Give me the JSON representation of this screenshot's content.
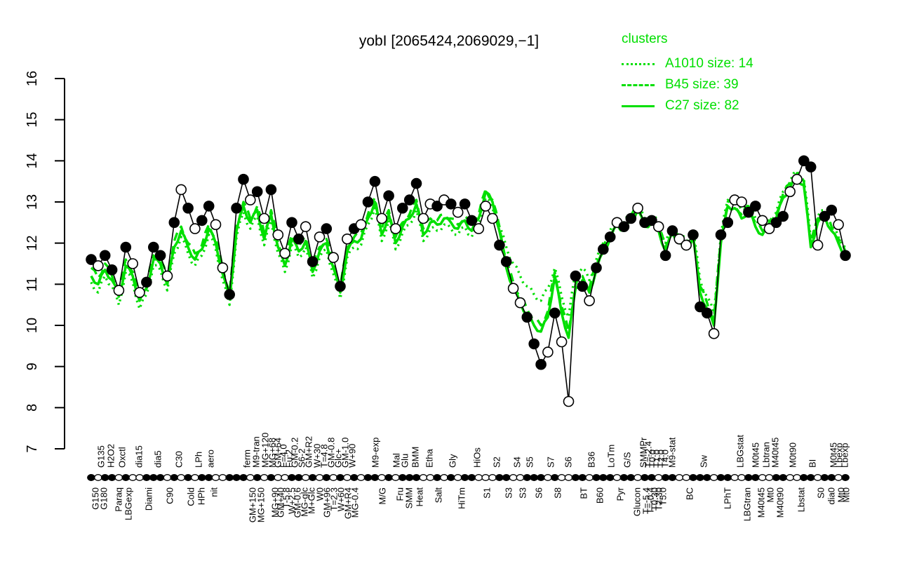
{
  "chart": {
    "title": "yobI [2065424,2069029,−1]",
    "colors": {
      "cluster": "#00DF00",
      "profile": "#000000",
      "background": "#FFFFFF"
    },
    "legend": {
      "title": "clusters",
      "entries": [
        {
          "style": "dotted",
          "label": "A1010 size: 14",
          "cluster": "A1010",
          "size": 14
        },
        {
          "style": "dashed",
          "label": "B45 size: 39",
          "cluster": "B45",
          "size": 39
        },
        {
          "style": "solid",
          "label": "C27 size: 82",
          "cluster": "C27",
          "size": 82
        }
      ]
    }
  },
  "chart_data": {
    "type": "line",
    "title": "yobI [2065424,2069029,−1]",
    "xlabel": "",
    "ylabel": "",
    "ylim": [
      7,
      16
    ],
    "yticks": [
      7,
      8,
      9,
      10,
      11,
      12,
      13,
      14,
      15,
      16
    ],
    "grid": false,
    "legend_position": "top-right",
    "series": [
      {
        "name": "yobI profile",
        "color": "#000000",
        "style": "line-with-markers",
        "points": [
          [
            11.6,
            1
          ],
          [
            11.45,
            0
          ],
          [
            11.7,
            1
          ],
          [
            11.35,
            1
          ],
          [
            10.85,
            0
          ],
          [
            11.9,
            1
          ],
          [
            11.5,
            0
          ],
          [
            10.8,
            0
          ],
          [
            11.05,
            1
          ],
          [
            11.9,
            1
          ],
          [
            11.7,
            1
          ],
          [
            11.2,
            0
          ],
          [
            12.5,
            1
          ],
          [
            13.3,
            0
          ],
          [
            12.85,
            1
          ],
          [
            12.35,
            0
          ],
          [
            12.55,
            1
          ],
          [
            12.9,
            1
          ],
          [
            12.45,
            0
          ],
          [
            11.4,
            0
          ],
          [
            10.75,
            1
          ],
          [
            12.85,
            1
          ],
          [
            13.55,
            1
          ],
          [
            13.05,
            0
          ],
          [
            13.25,
            1
          ],
          [
            12.6,
            0
          ],
          [
            13.3,
            1
          ],
          [
            12.2,
            0
          ],
          [
            11.75,
            0
          ],
          [
            12.5,
            1
          ],
          [
            12.1,
            1
          ],
          [
            12.4,
            0
          ],
          [
            11.55,
            1
          ],
          [
            12.15,
            0
          ],
          [
            12.35,
            1
          ],
          [
            11.65,
            0
          ],
          [
            10.95,
            1
          ],
          [
            12.1,
            0
          ],
          [
            12.35,
            1
          ],
          [
            12.45,
            0
          ],
          [
            13.0,
            1
          ],
          [
            13.5,
            1
          ],
          [
            12.6,
            0
          ],
          [
            13.15,
            1
          ],
          [
            12.35,
            0
          ],
          [
            12.85,
            1
          ],
          [
            13.05,
            1
          ],
          [
            13.45,
            1
          ],
          [
            12.6,
            0
          ],
          [
            12.95,
            0
          ],
          [
            12.9,
            1
          ],
          [
            13.05,
            0
          ],
          [
            12.95,
            1
          ],
          [
            12.75,
            0
          ],
          [
            12.95,
            1
          ],
          [
            12.55,
            1
          ],
          [
            12.35,
            0
          ],
          [
            12.9,
            0
          ],
          [
            12.6,
            0
          ],
          [
            11.95,
            1
          ],
          [
            11.55,
            1
          ],
          [
            10.9,
            0
          ],
          [
            10.55,
            0
          ],
          [
            10.2,
            1
          ],
          [
            9.55,
            1
          ],
          [
            9.05,
            1
          ],
          [
            9.35,
            0
          ],
          [
            10.3,
            1
          ],
          [
            9.6,
            0
          ],
          [
            8.15,
            0
          ],
          [
            11.2,
            1
          ],
          [
            10.95,
            1
          ],
          [
            10.6,
            0
          ],
          [
            11.4,
            1
          ],
          [
            11.85,
            1
          ],
          [
            12.15,
            1
          ],
          [
            12.5,
            0
          ],
          [
            12.4,
            1
          ],
          [
            12.6,
            1
          ],
          [
            12.85,
            0
          ],
          [
            12.5,
            1
          ],
          [
            12.55,
            1
          ],
          [
            12.4,
            0
          ],
          [
            11.7,
            1
          ],
          [
            12.3,
            1
          ],
          [
            12.1,
            0
          ],
          [
            11.95,
            0
          ],
          [
            12.2,
            1
          ],
          [
            10.45,
            1
          ],
          [
            10.3,
            1
          ],
          [
            9.8,
            0
          ],
          [
            12.2,
            1
          ],
          [
            12.5,
            1
          ],
          [
            13.05,
            0
          ],
          [
            13.0,
            0
          ],
          [
            12.75,
            1
          ],
          [
            12.9,
            1
          ],
          [
            12.55,
            0
          ],
          [
            12.35,
            0
          ],
          [
            12.5,
            1
          ],
          [
            12.65,
            1
          ],
          [
            13.25,
            0
          ],
          [
            13.55,
            0
          ],
          [
            14.0,
            1
          ],
          [
            13.85,
            1
          ],
          [
            11.95,
            0
          ],
          [
            12.65,
            1
          ],
          [
            12.8,
            1
          ],
          [
            12.45,
            0
          ],
          [
            11.7,
            1
          ]
        ]
      },
      {
        "name": "A1010 size: 14",
        "color": "#00DF00",
        "style": "dotted",
        "values": [
          11.05,
          10.8,
          11.2,
          10.95,
          10.5,
          11.3,
          11.05,
          10.4,
          10.75,
          11.45,
          11.35,
          10.85,
          11.75,
          12.15,
          11.75,
          11.45,
          11.7,
          12.2,
          11.85,
          11.1,
          10.5,
          12.15,
          12.75,
          12.35,
          12.65,
          11.95,
          12.55,
          11.75,
          11.3,
          11.95,
          11.65,
          11.9,
          11.15,
          11.65,
          11.85,
          11.25,
          10.65,
          11.65,
          11.9,
          11.95,
          12.45,
          12.85,
          12.05,
          12.55,
          11.85,
          12.25,
          12.45,
          12.8,
          12.05,
          12.35,
          12.3,
          12.45,
          12.35,
          12.2,
          12.4,
          12.15,
          12.45,
          13.1,
          12.85,
          12.4,
          11.9,
          11.5,
          11.2,
          10.95,
          10.75,
          10.6,
          10.9,
          11.4,
          10.7,
          10.2,
          11.3,
          11.4,
          11.1,
          11.6,
          12.0,
          12.3,
          12.6,
          12.5,
          12.7,
          12.95,
          12.55,
          12.65,
          12.5,
          12.0,
          12.4,
          12.2,
          12.05,
          12.3,
          11.1,
          10.7,
          10.3,
          12.2,
          13.05,
          13.0,
          12.8,
          12.95,
          12.6,
          12.4,
          12.55,
          12.75,
          13.25,
          13.5,
          13.75,
          13.55,
          12.1,
          12.65,
          12.8,
          12.45,
          12.15,
          11.9
        ]
      },
      {
        "name": "B45 size: 39",
        "color": "#00DF00",
        "style": "dashed",
        "values": [
          11.4,
          11.15,
          11.5,
          11.2,
          10.85,
          11.6,
          11.3,
          10.75,
          11.0,
          11.7,
          11.6,
          11.15,
          12.05,
          12.4,
          12.0,
          11.75,
          11.95,
          12.45,
          12.1,
          11.4,
          10.8,
          12.4,
          13.0,
          12.6,
          12.9,
          12.25,
          12.8,
          12.0,
          11.6,
          12.2,
          11.9,
          12.15,
          11.45,
          11.9,
          12.1,
          11.55,
          10.95,
          11.9,
          12.15,
          12.25,
          12.7,
          13.1,
          12.35,
          12.8,
          12.15,
          12.5,
          12.7,
          13.05,
          12.35,
          12.6,
          12.55,
          12.7,
          12.6,
          12.45,
          12.65,
          12.4,
          12.7,
          13.3,
          13.05,
          12.4,
          11.55,
          11.05,
          10.7,
          10.4,
          10.15,
          10.0,
          10.35,
          11.3,
          10.45,
          9.85,
          11.0,
          11.2,
          10.9,
          11.5,
          11.9,
          12.2,
          12.55,
          12.4,
          12.65,
          12.9,
          12.5,
          12.6,
          12.4,
          11.9,
          12.35,
          12.1,
          11.95,
          12.25,
          10.95,
          10.55,
          10.15,
          12.1,
          13.0,
          12.95,
          12.7,
          12.9,
          12.5,
          12.3,
          12.5,
          12.7,
          13.2,
          13.45,
          13.7,
          13.5,
          12.0,
          12.6,
          12.75,
          12.4,
          12.1,
          11.8
        ]
      },
      {
        "name": "C27 size: 82",
        "color": "#00DF00",
        "style": "solid",
        "values": [
          11.2,
          11.0,
          11.35,
          11.1,
          10.7,
          11.45,
          11.2,
          10.6,
          10.9,
          11.6,
          11.5,
          11.0,
          11.9,
          12.3,
          11.9,
          11.6,
          11.85,
          12.35,
          12.0,
          11.25,
          10.65,
          12.3,
          12.9,
          12.5,
          12.8,
          12.1,
          12.7,
          11.9,
          11.45,
          12.1,
          11.8,
          12.05,
          11.3,
          11.8,
          12.0,
          11.4,
          10.8,
          11.8,
          12.05,
          12.1,
          12.6,
          13.0,
          12.2,
          12.7,
          12.0,
          12.4,
          12.6,
          12.95,
          12.2,
          12.5,
          12.45,
          12.6,
          12.5,
          12.35,
          12.55,
          12.3,
          12.6,
          13.25,
          13.0,
          12.3,
          11.4,
          10.9,
          10.55,
          10.25,
          10.0,
          9.85,
          10.2,
          11.2,
          10.3,
          9.7,
          10.9,
          11.1,
          10.8,
          11.35,
          11.8,
          12.1,
          12.45,
          12.3,
          12.55,
          12.8,
          12.4,
          12.5,
          12.3,
          11.8,
          12.25,
          12.0,
          11.85,
          12.15,
          10.8,
          10.4,
          10.0,
          12.0,
          12.9,
          12.85,
          12.6,
          12.8,
          12.4,
          12.2,
          12.4,
          12.6,
          13.1,
          13.35,
          13.6,
          13.4,
          11.9,
          12.5,
          12.65,
          12.3,
          12.0,
          11.7
        ]
      }
    ],
    "x_axis": {
      "labels_top": [
        [
          144,
          "G135"
        ],
        [
          158,
          "H2O2"
        ],
        [
          174,
          "Oxctl"
        ],
        [
          198,
          "dia15"
        ],
        [
          225,
          "dia5"
        ],
        [
          255,
          "C30"
        ],
        [
          283,
          "LPh"
        ],
        [
          300,
          "aero"
        ],
        [
          352,
          "ferm"
        ],
        [
          365,
          "M9-tran"
        ],
        [
          378,
          "MG+120"
        ],
        [
          388,
          "MG+68"
        ],
        [
          396,
          "GM+64"
        ],
        [
          404,
          "F=4.0"
        ],
        [
          412,
          "Fu:2"
        ],
        [
          420,
          "GM-0.2"
        ],
        [
          430,
          "S6-2"
        ],
        [
          440,
          "GM+R2"
        ],
        [
          452,
          "W+30"
        ],
        [
          462,
          "T=4.8"
        ],
        [
          472,
          "GM-0.8"
        ],
        [
          482,
          "Glc+"
        ],
        [
          492,
          "GM-1.0"
        ],
        [
          502,
          "W+90"
        ],
        [
          535,
          "M9-exp"
        ],
        [
          565,
          "Mal"
        ],
        [
          577,
          "Glu"
        ],
        [
          592,
          "BMM"
        ],
        [
          612,
          "Etha"
        ],
        [
          645,
          "Gly"
        ],
        [
          680,
          "HiOs"
        ],
        [
          708,
          "S2"
        ],
        [
          737,
          "S4"
        ],
        [
          755,
          "S5"
        ],
        [
          785,
          "S7"
        ],
        [
          810,
          "S6"
        ],
        [
          843,
          "B36"
        ],
        [
          871,
          "LoTm"
        ],
        [
          894,
          "G/S"
        ],
        [
          917,
          "SMMPr"
        ],
        [
          924,
          "T=-2.4"
        ],
        [
          930,
          "T0:0"
        ],
        [
          936,
          "T1:0"
        ],
        [
          942,
          "T2:0"
        ],
        [
          948,
          "T4:0"
        ],
        [
          958,
          "M9-stat"
        ],
        [
          1003,
          "Sw"
        ],
        [
          1055,
          "LBGstat"
        ],
        [
          1077,
          "M0t45"
        ],
        [
          1092,
          "Lbtran"
        ],
        [
          1105,
          "M40t45"
        ],
        [
          1130,
          "M0t90"
        ],
        [
          1158,
          "BI"
        ],
        [
          1188,
          "M0t45"
        ],
        [
          1196,
          "Lbexp"
        ],
        [
          1204,
          "Lbexp"
        ]
      ],
      "labels_bottom": [
        [
          136,
          "G150"
        ],
        [
          148,
          "G180"
        ],
        [
          169,
          "Paraq"
        ],
        [
          183,
          "LBGexp"
        ],
        [
          212,
          "Diami"
        ],
        [
          242,
          "C90"
        ],
        [
          272,
          "Cold"
        ],
        [
          287,
          "HPh"
        ],
        [
          305,
          "nit"
        ],
        [
          360,
          "GM+150"
        ],
        [
          372,
          "MG+150"
        ],
        [
          392,
          "MG+90"
        ],
        [
          400,
          "GM+40"
        ],
        [
          408,
          "T-5.8"
        ],
        [
          416,
          "W+2.5"
        ],
        [
          424,
          "GM-0.6"
        ],
        [
          434,
          "MG-glc"
        ],
        [
          444,
          "M+Glc"
        ],
        [
          456,
          "W0"
        ],
        [
          466,
          "GM+96"
        ],
        [
          476,
          "T=2.3"
        ],
        [
          486,
          "W+60"
        ],
        [
          496,
          "GM+R4"
        ],
        [
          506,
          "MG-0.4"
        ],
        [
          545,
          "M/G"
        ],
        [
          570,
          "Fru"
        ],
        [
          583,
          "SMM"
        ],
        [
          598,
          "Heat"
        ],
        [
          625,
          "Salt"
        ],
        [
          658,
          "HiTm"
        ],
        [
          694,
          "S1"
        ],
        [
          725,
          "S3"
        ],
        [
          745,
          "S3"
        ],
        [
          768,
          "S6"
        ],
        [
          795,
          "S8"
        ],
        [
          832,
          "BT"
        ],
        [
          855,
          "B60"
        ],
        [
          884,
          "Pyr"
        ],
        [
          908,
          "Glucon"
        ],
        [
          921,
          "T=-5.4"
        ],
        [
          927,
          "T=-0.4"
        ],
        [
          933,
          "T0:30"
        ],
        [
          939,
          "T2:30"
        ],
        [
          945,
          "T5:0"
        ],
        [
          983,
          "BC"
        ],
        [
          1037,
          "LPhT"
        ],
        [
          1065,
          "LBGtran"
        ],
        [
          1085,
          "M40t45"
        ],
        [
          1098,
          "Mt0"
        ],
        [
          1112,
          "M40t90"
        ],
        [
          1142,
          "Lbstat"
        ],
        [
          1170,
          "S0"
        ],
        [
          1185,
          "dia0"
        ],
        [
          1199,
          "Mt0"
        ],
        [
          1206,
          "Mt0"
        ]
      ]
    }
  }
}
